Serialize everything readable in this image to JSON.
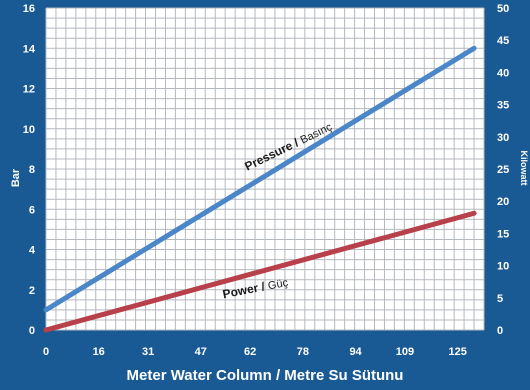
{
  "chart_data": {
    "type": "line",
    "xlabel": "Meter Water Column / Metre Su Sütunu",
    "ylabel_left": "Bar",
    "ylabel_right": "Kilowatt",
    "x_ticks": [
      0,
      16,
      31,
      47,
      62,
      78,
      94,
      109,
      125
    ],
    "xlim": [
      0,
      133
    ],
    "ylim_left": [
      0,
      16
    ],
    "ylim_right": [
      0,
      50
    ],
    "y_ticks_left": [
      0,
      2,
      4,
      6,
      8,
      10,
      12,
      14,
      16
    ],
    "y_ticks_right": [
      0,
      5,
      10,
      15,
      20,
      25,
      30,
      35,
      40,
      45,
      50
    ],
    "grid": true,
    "series": [
      {
        "name_bold": "Pressure",
        "name_sep": " / ",
        "name_light": "Basınç",
        "axis": "left",
        "color": "#4a86c8",
        "x": [
          0,
          130
        ],
        "y": [
          1.0,
          14.0
        ]
      },
      {
        "name_bold": "Power",
        "name_sep": " / ",
        "name_light": "Güç",
        "axis": "left",
        "color": "#b8404a",
        "x": [
          0,
          130
        ],
        "y": [
          0.0,
          5.8
        ]
      }
    ]
  }
}
